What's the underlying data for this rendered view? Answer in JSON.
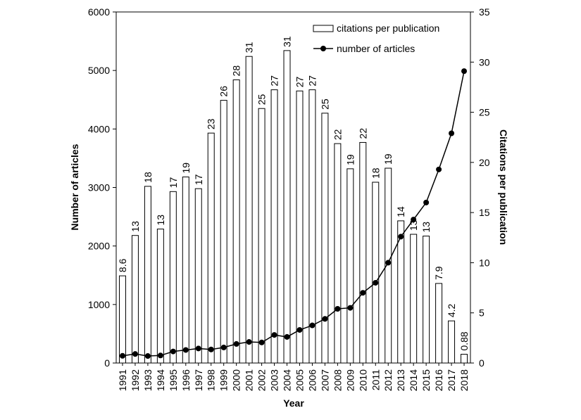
{
  "chart_data": {
    "type": "bar",
    "xlabel": "Year",
    "ylabel_left": "Number of articles",
    "ylabel_right": "Citations per publication",
    "ylim_left": [
      0,
      6000
    ],
    "ylim_right": [
      0,
      35
    ],
    "yticks_left": [
      "0",
      "1000",
      "2000",
      "3000",
      "4000",
      "5000",
      "6000"
    ],
    "yticks_right": [
      "0",
      "5",
      "10",
      "15",
      "20",
      "25",
      "30",
      "35"
    ],
    "grid": false,
    "legend_position": "top-right",
    "categories": [
      "1991",
      "1992",
      "1993",
      "1994",
      "1995",
      "1996",
      "1997",
      "1998",
      "1999",
      "2000",
      "2001",
      "2002",
      "2003",
      "2004",
      "2005",
      "2006",
      "2007",
      "2008",
      "2009",
      "2010",
      "2011",
      "2012",
      "2013",
      "2014",
      "2015",
      "2016",
      "2017",
      "2018"
    ],
    "series": [
      {
        "name": "citations per publication",
        "kind": "bar",
        "axis": "left",
        "values": [
          1490,
          2180,
          3020,
          2290,
          2930,
          3180,
          2980,
          3930,
          4490,
          4840,
          5240,
          4350,
          4670,
          5340,
          4650,
          4670,
          4270,
          3750,
          3320,
          3770,
          3090,
          3330,
          2430,
          2200,
          2170,
          1360,
          720,
          150
        ],
        "labels": [
          "8.6",
          "13",
          "18",
          "13",
          "17",
          "19",
          "17",
          "23",
          "26",
          "28",
          "31",
          "25",
          "27",
          "31",
          "27",
          "27",
          "25",
          "22",
          "19",
          "22",
          "18",
          "19",
          "14",
          "13",
          "13",
          "7.9",
          "4.2",
          "0.88"
        ]
      },
      {
        "name": "number of articles",
        "kind": "line",
        "axis": "right",
        "values": [
          0.72,
          0.9,
          0.7,
          0.75,
          1.15,
          1.3,
          1.45,
          1.35,
          1.55,
          1.9,
          2.1,
          2.05,
          2.8,
          2.6,
          3.3,
          3.75,
          4.4,
          5.4,
          5.5,
          7.0,
          8.0,
          10.0,
          12.6,
          14.3,
          16.0,
          19.3,
          22.9,
          29.1
        ]
      }
    ]
  }
}
